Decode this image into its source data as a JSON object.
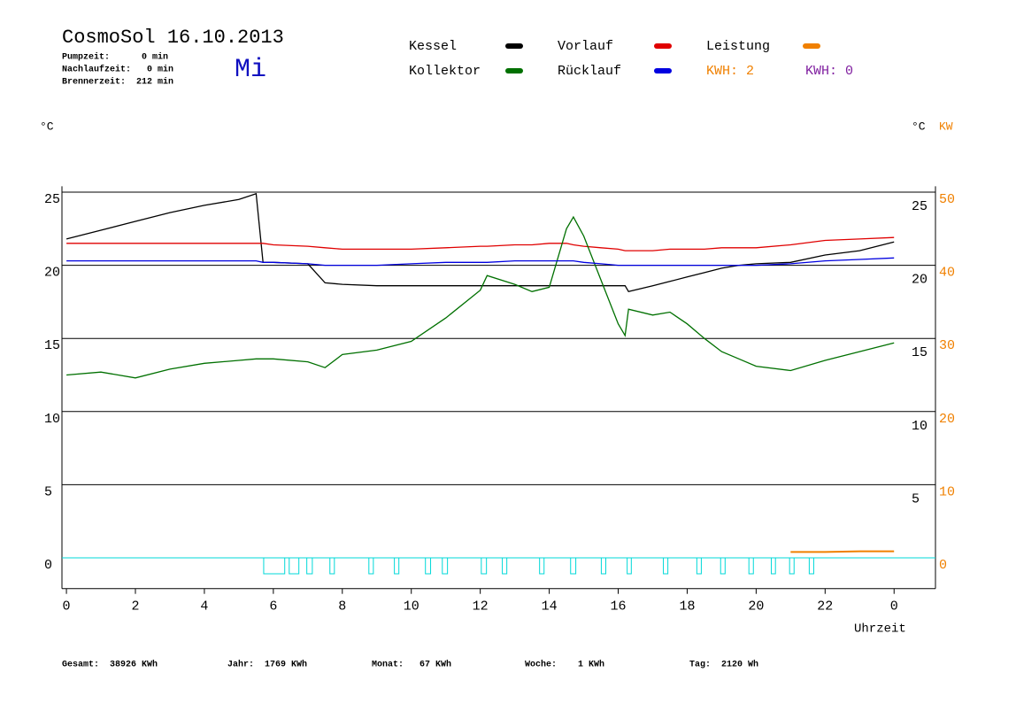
{
  "chart_data": {
    "type": "line",
    "title": "CosmoSol 16.10.2013",
    "info": [
      "Pumpzeit:      0 min",
      "Nachlaufzeit:   0 min",
      "Brennerzeit:  212 min"
    ],
    "day": "Mi",
    "kwh_labels": [
      {
        "text": "KWH: 2",
        "color": "#f08000"
      },
      {
        "text": "KWH: 0",
        "color": "#8020a0"
      }
    ],
    "y_unit": "°C",
    "y2_unit": "KW",
    "x_label": "Uhrzeit",
    "totals": [
      "Gesamt:  38926 KWh",
      "Jahr:  1769 KWh",
      "Monat:   67 KWh",
      "Woche:    1 KWh",
      "Tag:  2120 Wh"
    ],
    "x": [
      0,
      1,
      2,
      3,
      4,
      5,
      5.5,
      5.7,
      6,
      7,
      7.5,
      8,
      9,
      10,
      11,
      12,
      12.2,
      13,
      13.5,
      14,
      14.5,
      14.7,
      15,
      15.5,
      16,
      16.2,
      16.3,
      17,
      17.5,
      18,
      18.5,
      19,
      19.5,
      20,
      21,
      22,
      23,
      24
    ],
    "series": [
      {
        "name": "Kessel",
        "color": "#000000",
        "values": [
          21.8,
          22.4,
          23.0,
          23.6,
          24.1,
          24.5,
          24.9,
          20.2,
          20.2,
          20.1,
          18.8,
          18.7,
          18.6,
          18.6,
          18.6,
          18.6,
          18.6,
          18.6,
          18.6,
          18.6,
          18.6,
          18.6,
          18.6,
          18.6,
          18.6,
          18.6,
          18.2,
          18.6,
          18.9,
          19.2,
          19.5,
          19.8,
          20.0,
          20.1,
          20.2,
          20.7,
          21.0,
          21.6
        ]
      },
      {
        "name": "Vorlauf",
        "color": "#e00000",
        "values": [
          21.5,
          21.5,
          21.5,
          21.5,
          21.5,
          21.5,
          21.5,
          21.5,
          21.4,
          21.3,
          21.2,
          21.1,
          21.1,
          21.1,
          21.2,
          21.3,
          21.3,
          21.4,
          21.4,
          21.5,
          21.5,
          21.4,
          21.3,
          21.2,
          21.1,
          21.0,
          21.0,
          21.0,
          21.1,
          21.1,
          21.1,
          21.2,
          21.2,
          21.2,
          21.4,
          21.7,
          21.8,
          21.9
        ]
      },
      {
        "name": "Leistung",
        "color": "#f08000",
        "axis": "y2",
        "values": [
          null,
          null,
          null,
          null,
          null,
          null,
          null,
          null,
          null,
          null,
          null,
          null,
          null,
          null,
          null,
          null,
          null,
          null,
          null,
          null,
          null,
          null,
          null,
          null,
          null,
          null,
          null,
          null,
          null,
          null,
          null,
          null,
          null,
          null,
          0.8,
          0.8,
          0.9,
          0.9
        ]
      },
      {
        "name": "Kollektor",
        "color": "#007000",
        "values": [
          12.5,
          12.7,
          12.3,
          12.9,
          13.3,
          13.5,
          13.6,
          13.6,
          13.6,
          13.4,
          13.0,
          13.9,
          14.2,
          14.8,
          16.4,
          18.3,
          19.3,
          18.7,
          18.2,
          18.5,
          22.5,
          23.3,
          22.0,
          19.0,
          16.0,
          15.2,
          17.0,
          16.6,
          16.8,
          16.0,
          15.0,
          14.1,
          13.6,
          13.1,
          12.8,
          13.5,
          14.1,
          14.7
        ]
      },
      {
        "name": "Rücklauf",
        "color": "#0000e0",
        "values": [
          20.3,
          20.3,
          20.3,
          20.3,
          20.3,
          20.3,
          20.3,
          20.2,
          20.2,
          20.1,
          20.0,
          20.0,
          20.0,
          20.1,
          20.2,
          20.2,
          20.2,
          20.3,
          20.3,
          20.3,
          20.3,
          20.3,
          20.2,
          20.1,
          20.0,
          20.0,
          20.0,
          20.0,
          20.0,
          20.0,
          20.0,
          20.0,
          20.0,
          20.0,
          20.1,
          20.3,
          20.4,
          20.5
        ]
      }
    ],
    "pump_color": "#00d8d8",
    "pump_runs": [
      [
        5.72,
        6.33
      ],
      [
        6.46,
        6.74
      ],
      [
        6.97,
        7.13
      ],
      [
        7.64,
        7.77
      ],
      [
        8.77,
        8.9
      ],
      [
        9.51,
        9.64
      ],
      [
        10.41,
        10.56
      ],
      [
        10.9,
        11.05
      ],
      [
        12.03,
        12.18
      ],
      [
        12.64,
        12.77
      ],
      [
        13.72,
        13.85
      ],
      [
        14.62,
        14.77
      ],
      [
        15.51,
        15.64
      ],
      [
        16.26,
        16.38
      ],
      [
        17.31,
        17.44
      ],
      [
        18.28,
        18.41
      ],
      [
        18.97,
        19.1
      ],
      [
        19.79,
        19.92
      ],
      [
        20.44,
        20.56
      ],
      [
        20.97,
        21.1
      ],
      [
        21.54,
        21.67
      ]
    ],
    "xlim": [
      -0.13,
      25.2
    ],
    "xticks": [
      0,
      2,
      4,
      6,
      8,
      10,
      12,
      14,
      16,
      18,
      20,
      22,
      {
        "value": 24,
        "label": "0"
      }
    ],
    "ylim": [
      -2.1,
      25.4
    ],
    "yticks": [
      0,
      5,
      10,
      15,
      20,
      25
    ],
    "y_right_ticks": [
      5,
      10,
      15,
      20,
      25
    ],
    "y2lim": [
      -4.2,
      50.8
    ],
    "y2ticks": [
      0,
      10,
      20,
      30,
      40,
      50
    ],
    "y2_color": "#f08000",
    "grid": true
  }
}
